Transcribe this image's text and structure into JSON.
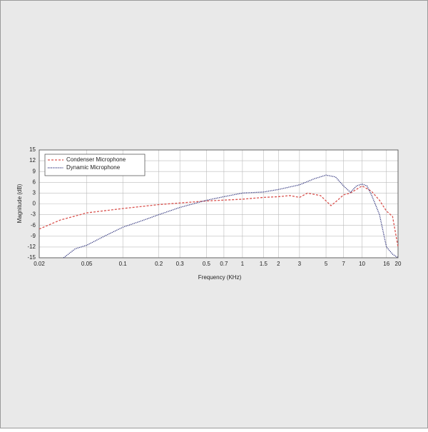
{
  "chart_data": {
    "type": "line",
    "xlabel": "Frequency (KHz)",
    "ylabel": "Magnitude (dB)",
    "xscale": "log",
    "xlim": [
      0.02,
      20
    ],
    "xticks": [
      0.02,
      0.05,
      0.1,
      0.2,
      0.3,
      0.5,
      0.7,
      1,
      1.5,
      2,
      3,
      5,
      7,
      10,
      16,
      20
    ],
    "ylim": [
      -15,
      15
    ],
    "yticks": [
      -15,
      -12,
      -9,
      -6,
      -3,
      0,
      3,
      6,
      9,
      12,
      15
    ],
    "grid": true,
    "legend": "upper left",
    "series": [
      {
        "name": "Condenser Microphone",
        "color": "#d9534f",
        "dash": "dashed",
        "x": [
          0.02,
          0.03,
          0.05,
          0.1,
          0.2,
          0.5,
          1,
          1.5,
          2,
          2.5,
          3,
          3.5,
          4.5,
          5.5,
          6,
          7,
          8,
          10,
          12,
          14,
          16,
          18,
          20
        ],
        "values": [
          -7,
          -4.5,
          -2.5,
          -1.3,
          -0.2,
          0.8,
          1.3,
          1.8,
          2,
          2.3,
          1.8,
          3,
          2.3,
          -0.5,
          0.5,
          2.5,
          3,
          5,
          3.5,
          1,
          -2,
          -3.5,
          -12
        ]
      },
      {
        "name": "Dynamic Microphone",
        "color": "#2b2f7a",
        "dash": "dotted",
        "x": [
          0.032,
          0.04,
          0.05,
          0.07,
          0.1,
          0.15,
          0.2,
          0.3,
          0.5,
          0.7,
          1,
          1.5,
          2,
          3,
          4,
          5,
          6,
          7,
          8,
          9,
          10,
          11,
          12,
          14,
          16,
          18,
          20
        ],
        "values": [
          -15,
          -12.5,
          -11.5,
          -9,
          -6.5,
          -4.5,
          -3,
          -1,
          1,
          2,
          3,
          3.3,
          4,
          5.3,
          7,
          8,
          7.5,
          5,
          3.2,
          5,
          5.5,
          5,
          2.5,
          -3,
          -12,
          -14,
          -15
        ]
      }
    ]
  }
}
